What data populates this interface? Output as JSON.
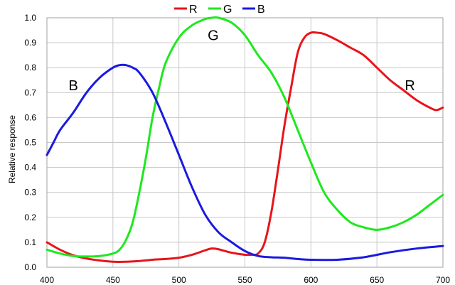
{
  "chart_data": {
    "type": "line",
    "title": "",
    "xlabel": "",
    "ylabel": "Relative response",
    "xlim": [
      400,
      700
    ],
    "ylim": [
      0,
      1.0
    ],
    "x_ticks": [
      400,
      450,
      500,
      550,
      600,
      650,
      700
    ],
    "x_tick_labels": [
      "400",
      "450",
      "500",
      "550",
      "600",
      "650",
      "700"
    ],
    "y_ticks": [
      0,
      0.1,
      0.2,
      0.3,
      0.4,
      0.5,
      0.6,
      0.7,
      0.8,
      0.9,
      1.0
    ],
    "y_tick_labels": [
      "0.0",
      "0.1",
      "0.2",
      "0.3",
      "0.4",
      "0.5",
      "0.6",
      "0.7",
      "0.8",
      "0.9",
      "1.0"
    ],
    "grid": true,
    "legend": {
      "placement": "top-center"
    },
    "series": [
      {
        "name": "R",
        "color": "#e8141b",
        "x": [
          400,
          410,
          420,
          430,
          440,
          450,
          460,
          470,
          480,
          490,
          500,
          510,
          520,
          525,
          530,
          540,
          550,
          555,
          560,
          565,
          570,
          575,
          580,
          585,
          590,
          595,
          600,
          605,
          610,
          620,
          630,
          640,
          650,
          660,
          670,
          680,
          690,
          695,
          700
        ],
        "y": [
          0.1,
          0.07,
          0.048,
          0.035,
          0.027,
          0.022,
          0.022,
          0.025,
          0.03,
          0.033,
          0.038,
          0.05,
          0.068,
          0.075,
          0.072,
          0.058,
          0.05,
          0.05,
          0.055,
          0.1,
          0.22,
          0.39,
          0.57,
          0.72,
          0.86,
          0.92,
          0.94,
          0.94,
          0.935,
          0.91,
          0.88,
          0.85,
          0.8,
          0.75,
          0.71,
          0.67,
          0.64,
          0.63,
          0.64
        ]
      },
      {
        "name": "G",
        "color": "#1ee81e",
        "x": [
          400,
          410,
          420,
          430,
          440,
          450,
          455,
          460,
          465,
          470,
          475,
          480,
          485,
          490,
          500,
          510,
          520,
          525,
          530,
          540,
          550,
          560,
          570,
          580,
          590,
          600,
          610,
          620,
          630,
          640,
          650,
          660,
          670,
          680,
          690,
          700
        ],
        "y": [
          0.07,
          0.055,
          0.045,
          0.043,
          0.045,
          0.055,
          0.07,
          0.11,
          0.18,
          0.3,
          0.44,
          0.6,
          0.72,
          0.82,
          0.92,
          0.97,
          0.995,
          1.0,
          1.0,
          0.98,
          0.93,
          0.85,
          0.78,
          0.68,
          0.55,
          0.42,
          0.3,
          0.23,
          0.18,
          0.16,
          0.15,
          0.16,
          0.18,
          0.21,
          0.25,
          0.29
        ]
      },
      {
        "name": "B",
        "color": "#1a1ae0",
        "x": [
          400,
          405,
          410,
          420,
          430,
          440,
          450,
          455,
          460,
          465,
          470,
          480,
          490,
          500,
          510,
          520,
          530,
          540,
          550,
          560,
          570,
          580,
          590,
          600,
          620,
          640,
          660,
          680,
          700
        ],
        "y": [
          0.45,
          0.5,
          0.55,
          0.62,
          0.7,
          0.76,
          0.8,
          0.81,
          0.81,
          0.8,
          0.78,
          0.7,
          0.58,
          0.45,
          0.32,
          0.21,
          0.14,
          0.1,
          0.065,
          0.045,
          0.04,
          0.038,
          0.033,
          0.03,
          0.03,
          0.04,
          0.06,
          0.075,
          0.085
        ]
      }
    ],
    "annotations": [
      {
        "text": "B",
        "x": 420,
        "y": 0.73
      },
      {
        "text": "G",
        "x": 526,
        "y": 0.93
      },
      {
        "text": "R",
        "x": 675,
        "y": 0.73
      }
    ]
  }
}
